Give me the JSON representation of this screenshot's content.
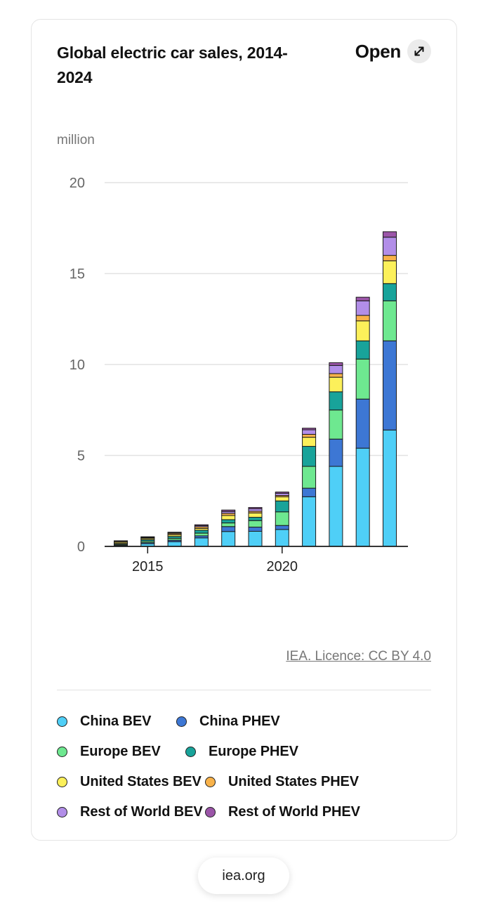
{
  "card": {
    "title": "Global electric car sales, 2014-2024",
    "open_label": "Open",
    "credit": "IEA. Licence: CC BY 4.0"
  },
  "footer": {
    "source": "iea.org"
  },
  "icons": {
    "open": "expand-diagonal-arrows-icon"
  },
  "chart_data": {
    "type": "bar",
    "stacked": true,
    "title": "",
    "ylabel": "million",
    "xlabel": "",
    "ylim": [
      0,
      20
    ],
    "yticks": [
      "0",
      "5",
      "10",
      "15",
      "20"
    ],
    "ytick_values": [
      0,
      5,
      10,
      15,
      20
    ],
    "xtick_labels": [
      {
        "label": "2015",
        "category": "2015"
      },
      {
        "label": "2020",
        "category": "2020"
      }
    ],
    "grid": true,
    "legend_position": "bottom",
    "categories": [
      "2014",
      "2015",
      "2016",
      "2017",
      "2018",
      "2019",
      "2020",
      "2021",
      "2022",
      "2023",
      "2024"
    ],
    "series": [
      {
        "name": "China BEV",
        "color": "#4fcff7",
        "values": [
          0.05,
          0.15,
          0.26,
          0.47,
          0.82,
          0.83,
          0.93,
          2.73,
          4.4,
          5.4,
          6.4
        ]
      },
      {
        "name": "China PHEV",
        "color": "#3d77d4",
        "values": [
          0.02,
          0.06,
          0.08,
          0.11,
          0.27,
          0.23,
          0.22,
          0.47,
          1.5,
          2.7,
          4.9
        ]
      },
      {
        "name": "Europe BEV",
        "color": "#6ee890",
        "values": [
          0.05,
          0.08,
          0.1,
          0.15,
          0.2,
          0.36,
          0.75,
          1.2,
          1.6,
          2.2,
          2.2
        ]
      },
      {
        "name": "Europe PHEV",
        "color": "#18a39a",
        "values": [
          0.04,
          0.08,
          0.11,
          0.16,
          0.18,
          0.18,
          0.6,
          1.1,
          1.0,
          1.0,
          0.95
        ]
      },
      {
        "name": "United States BEV",
        "color": "#fcf05a",
        "values": [
          0.07,
          0.07,
          0.09,
          0.1,
          0.23,
          0.24,
          0.23,
          0.5,
          0.8,
          1.1,
          1.25
        ]
      },
      {
        "name": "United States PHEV",
        "color": "#f8b24a",
        "values": [
          0.05,
          0.04,
          0.07,
          0.09,
          0.12,
          0.09,
          0.07,
          0.16,
          0.2,
          0.3,
          0.3
        ]
      },
      {
        "name": "Rest of World BEV",
        "color": "#b28ee8",
        "values": [
          0.02,
          0.03,
          0.04,
          0.06,
          0.1,
          0.14,
          0.12,
          0.25,
          0.45,
          0.8,
          1.0
        ]
      },
      {
        "name": "Rest of World PHEV",
        "color": "#9b55a8",
        "values": [
          0.01,
          0.02,
          0.03,
          0.05,
          0.08,
          0.07,
          0.07,
          0.09,
          0.15,
          0.2,
          0.3
        ]
      }
    ]
  }
}
